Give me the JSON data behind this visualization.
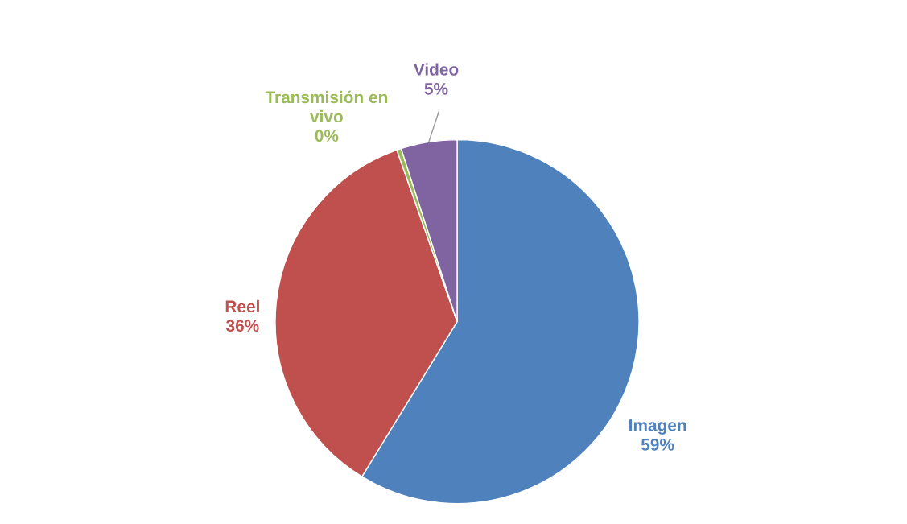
{
  "chart_data": {
    "type": "pie",
    "categories": [
      "Imagen",
      "Reel",
      "Transmisión en vivo",
      "Video"
    ],
    "values": [
      59,
      36,
      0.4,
      5
    ],
    "value_labels": [
      "59%",
      "36%",
      "0%",
      "5%"
    ],
    "colors": [
      "#4f81bd",
      "#c0504d",
      "#9bbb59",
      "#8064a2"
    ],
    "legend": false
  }
}
